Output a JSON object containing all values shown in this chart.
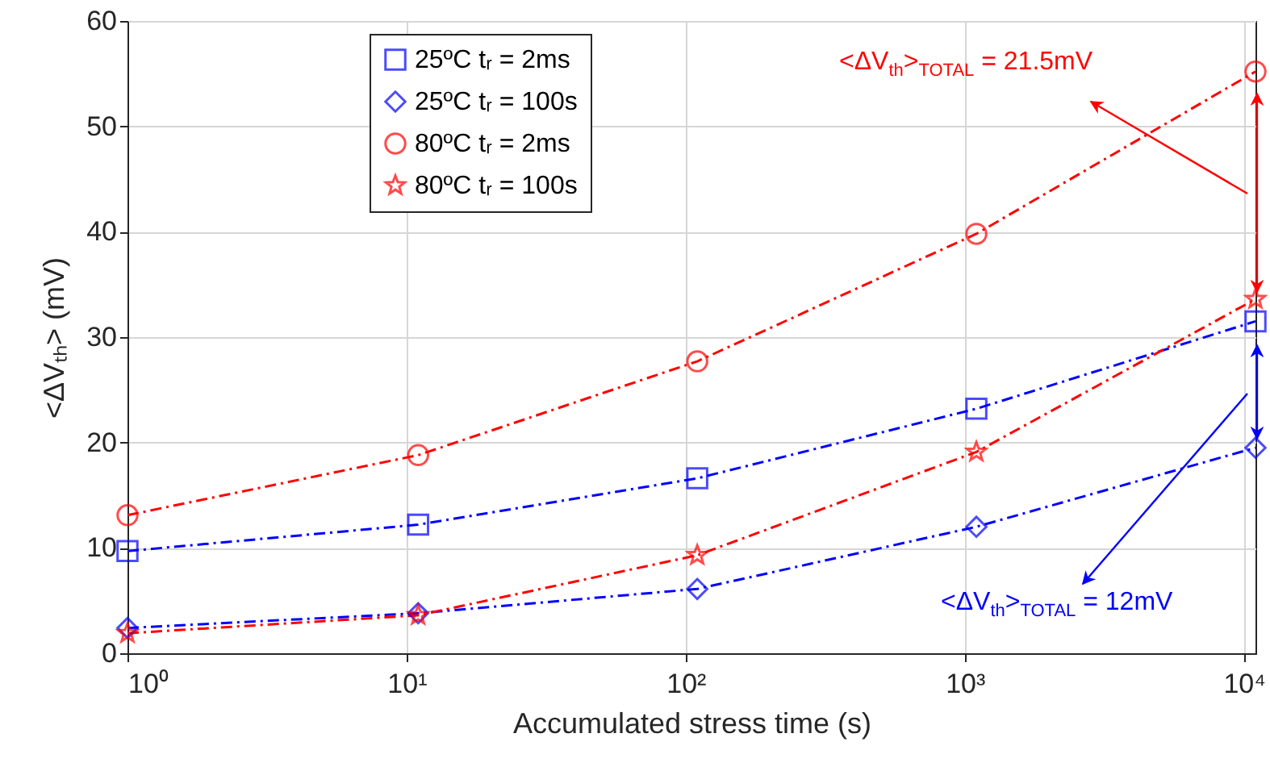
{
  "chart_data": {
    "type": "line",
    "xlabel": "Accumulated stress time (s)",
    "ylabel": "<ΔVₜₕ> (mV)",
    "x": [
      1,
      11,
      110,
      1100,
      11000
    ],
    "log": "x",
    "xlim": [
      1,
      11000
    ],
    "xticks": [
      {
        "value": 1,
        "label": "10⁰"
      },
      {
        "value": 10,
        "label": "10¹"
      },
      {
        "value": 100,
        "label": "10²"
      },
      {
        "value": 1000,
        "label": "10³"
      },
      {
        "value": 10000,
        "label": "10⁴"
      }
    ],
    "ylim": [
      0,
      60
    ],
    "yticks": [
      0,
      10,
      20,
      30,
      40,
      50,
      60
    ],
    "grid": true,
    "legend": "top left",
    "line_style": "dashed",
    "series": [
      {
        "name": "25ºC tᵣ = 2ms",
        "color": "#0000ff",
        "marker": "square",
        "values": [
          9.7,
          12.2,
          16.6,
          23.2,
          31.5
        ]
      },
      {
        "name": "25ºC tᵣ = 100s",
        "color": "#0000ff",
        "marker": "diamond",
        "values": [
          2.4,
          3.8,
          6.1,
          12.0,
          19.5
        ]
      },
      {
        "name": "80ºC tᵣ = 2ms",
        "color": "#ff0000",
        "marker": "circle",
        "values": [
          13.1,
          18.8,
          27.7,
          39.8,
          55.2
        ]
      },
      {
        "name": "80ºC tᵣ = 100s",
        "color": "#ff0000",
        "marker": "star",
        "values": [
          1.9,
          3.6,
          9.3,
          19.1,
          33.6
        ]
      }
    ],
    "annotations": [
      "<ΔV$_{th}$>$_{TOTAL}$ = 21.5mV",
      "<ΔV$_{th}$>$_{TOTAL}$ = 12mV"
    ]
  }
}
